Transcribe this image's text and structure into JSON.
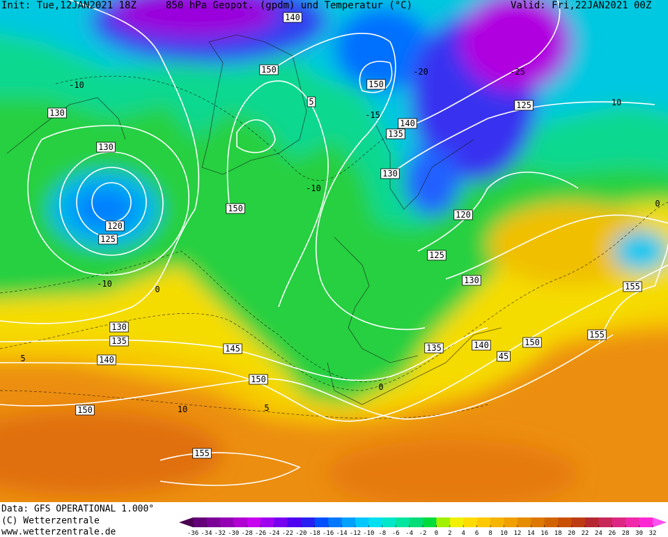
{
  "header": {
    "init": "Init: Tue,12JAN2021 18Z",
    "title": "850 hPa Geopot. (gpdm) und Temperatur (°C)",
    "valid": "Valid: Fri,22JAN2021 00Z"
  },
  "footer": {
    "data_source": "Data: GFS OPERATIONAL 1.000°",
    "copyright": "(C) Wetterzentrale",
    "url": "www.wetterzentrale.de"
  },
  "map": {
    "geopotential_labels": [
      140,
      150,
      150,
      5,
      130,
      125,
      140,
      135,
      130,
      130,
      150,
      120,
      120,
      125,
      125,
      130,
      155,
      130,
      135,
      145,
      140,
      135,
      140,
      150,
      45,
      155,
      150,
      150,
      155
    ],
    "temperature_labels": [
      -10,
      -15,
      -20,
      -25,
      -10,
      0,
      5,
      0,
      5,
      10,
      10,
      -10,
      0
    ]
  },
  "colorbar": {
    "ticks": [
      -36,
      -34,
      -32,
      -30,
      -28,
      -26,
      -24,
      -22,
      -20,
      -18,
      -16,
      -14,
      -12,
      -10,
      -8,
      -6,
      -4,
      -2,
      0,
      2,
      4,
      6,
      8,
      10,
      12,
      14,
      16,
      18,
      20,
      22,
      24,
      26,
      28,
      30,
      32
    ],
    "colors": [
      "#4b0050",
      "#640078",
      "#7a0096",
      "#9400b4",
      "#b000d2",
      "#c800f0",
      "#a000f0",
      "#7800f0",
      "#5000f0",
      "#2820f0",
      "#0050ff",
      "#0078ff",
      "#00a0ff",
      "#00c8ff",
      "#00e0f0",
      "#00e6c8",
      "#00e6a0",
      "#00dc78",
      "#00dc3c",
      "#a0f000",
      "#f0f000",
      "#ffdc00",
      "#ffc800",
      "#f5b400",
      "#f0a000",
      "#e68c00",
      "#dc7800",
      "#d26400",
      "#c85000",
      "#be3c14",
      "#b42832",
      "#c8285a",
      "#dc2882",
      "#f028aa",
      "#ff28d2",
      "#ff50f0"
    ]
  }
}
